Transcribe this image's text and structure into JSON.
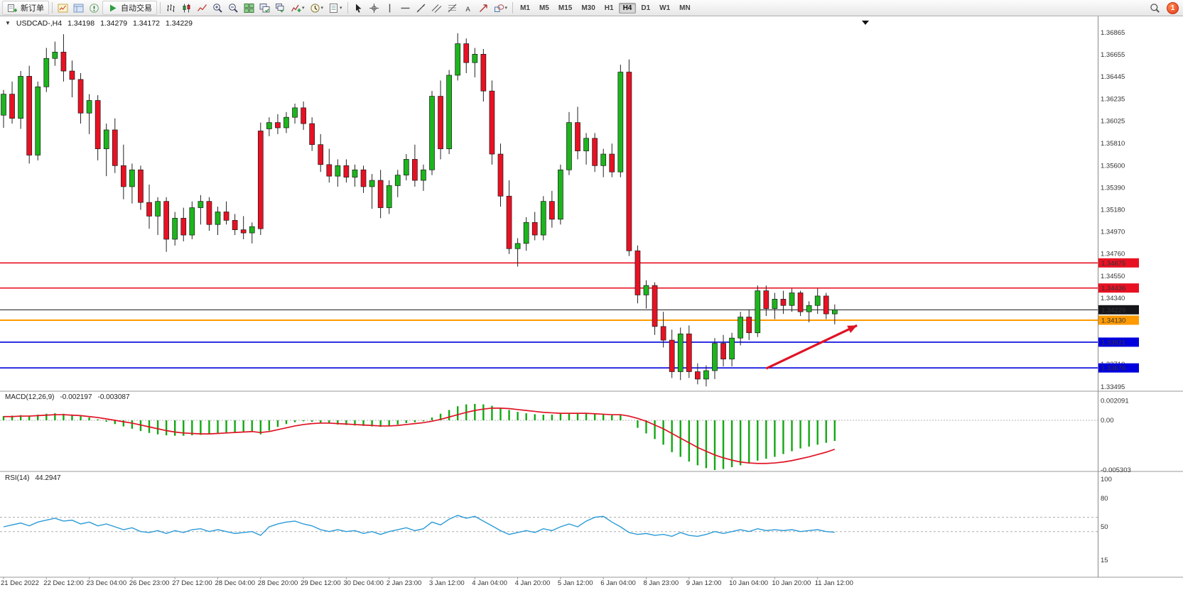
{
  "toolbar": {
    "new_order_label": "新订单",
    "autotrade_label": "自动交易",
    "groups": {
      "left_icons": [
        "charts-icon",
        "profile-icon",
        "alerts-icon"
      ],
      "chart_types": [
        "bar-chart-icon",
        "candlestick-icon",
        "line-chart-icon"
      ],
      "zoom": [
        "zoom-in-icon",
        "zoom-out-icon"
      ],
      "windows": [
        "tile-windows-icon",
        "arrange-windows-icon",
        "cascade-windows-icon"
      ],
      "insert": [
        "indicators-icon",
        "timeframe-clock-icon",
        "template-icon"
      ],
      "draw": [
        "cursor-icon",
        "crosshair-icon",
        "vertical-line-icon",
        "horizontal-line-icon",
        "trendline-icon",
        "channel-icon",
        "fibonacci-icon",
        "text-icon",
        "arrow-draw-icon",
        "shapes-icon"
      ]
    },
    "timeframes": [
      "M1",
      "M5",
      "M15",
      "M30",
      "H1",
      "H4",
      "D1",
      "W1",
      "MN"
    ],
    "active_timeframe": "H4",
    "search_icon": "search-icon",
    "notification_count": "1"
  },
  "chart_header": {
    "collapse_icon": "▼",
    "symbol": "USDCAD-,H4",
    "open": "1.34198",
    "high": "1.34279",
    "low": "1.34172",
    "close": "1.34229"
  },
  "macd_panel": {
    "label": "MACD(12,26,9)",
    "value_main": "-0.002197",
    "value_signal": "-0.003087"
  },
  "rsi_panel": {
    "label": "RSI(14)",
    "value": "44.2947"
  },
  "chart_data": [
    {
      "type": "candlestick",
      "title": "USDCAD-,H4",
      "timeframe": "H4",
      "ohlc_display": {
        "open": 1.34198,
        "high": 1.34279,
        "low": 1.34172,
        "close": 1.34229
      },
      "ylim": [
        1.33495,
        1.36865
      ],
      "y_ticks": [
        "1.36865",
        "1.36655",
        "1.36445",
        "1.36235",
        "1.36025",
        "1.35810",
        "1.35600",
        "1.35390",
        "1.35180",
        "1.34970",
        "1.34760",
        "1.34550",
        "1.34340",
        "1.34130",
        "1.33920",
        "1.33710",
        "1.33495"
      ],
      "x_tick_step": 5,
      "x_tick_labels": [
        "21 Dec 2022",
        "22 Dec 12:00",
        "23 Dec 04:00",
        "26 Dec 23:00",
        "27 Dec 12:00",
        "28 Dec 04:00",
        "28 Dec 20:00",
        "29 Dec 12:00",
        "30 Dec 04:00",
        "2 Jan 23:00",
        "3 Jan 12:00",
        "4 Jan 04:00",
        "4 Jan 20:00",
        "5 Jan 12:00",
        "6 Jan 04:00",
        "8 Jan 23:00",
        "9 Jan 12:00",
        "10 Jan 04:00",
        "10 Jan 20:00",
        "11 Jan 12:00"
      ],
      "up_color": "#1db51d",
      "down_color": "#e81123",
      "wick_color": "#222222",
      "hlines": [
        {
          "value": 1.34675,
          "label": "1.34675",
          "color": "#e81123",
          "width": 1.6
        },
        {
          "value": 1.34436,
          "label": "1.34436",
          "color": "#e81123",
          "width": 1.6
        },
        {
          "value": 1.34229,
          "label": "1.34229",
          "color": "#15151a",
          "width": 1
        },
        {
          "value": 1.3413,
          "label": "1.34130",
          "color": "#ff9a00",
          "width": 2
        },
        {
          "value": 1.33921,
          "label": "1.33921",
          "color": "#0000dd",
          "width": 1.6
        },
        {
          "value": 1.33676,
          "label": "1.33676",
          "color": "#0000dd",
          "width": 1.6
        }
      ],
      "annotations": [
        {
          "type": "arrow",
          "color": "#e01325",
          "start": {
            "index": 89,
            "price": 1.3367
          },
          "end": {
            "index": 99.6,
            "price": 1.3408
          }
        }
      ],
      "candles": [
        [
          1.3608,
          1.3632,
          1.3596,
          1.3628
        ],
        [
          1.3628,
          1.364,
          1.36,
          1.3605
        ],
        [
          1.3605,
          1.365,
          1.3595,
          1.3645
        ],
        [
          1.3645,
          1.3655,
          1.3562,
          1.357
        ],
        [
          1.357,
          1.364,
          1.3565,
          1.3635
        ],
        [
          1.3635,
          1.3672,
          1.363,
          1.3662
        ],
        [
          1.3662,
          1.3678,
          1.3655,
          1.3668
        ],
        [
          1.3668,
          1.3685,
          1.364,
          1.365
        ],
        [
          1.365,
          1.366,
          1.3625,
          1.3642
        ],
        [
          1.3642,
          1.3648,
          1.36,
          1.361
        ],
        [
          1.361,
          1.3628,
          1.359,
          1.3622
        ],
        [
          1.3622,
          1.3627,
          1.3565,
          1.3576
        ],
        [
          1.3576,
          1.36,
          1.355,
          1.3594
        ],
        [
          1.3594,
          1.3605,
          1.3553,
          1.356
        ],
        [
          1.356,
          1.358,
          1.3528,
          1.354
        ],
        [
          1.354,
          1.3562,
          1.3524,
          1.3556
        ],
        [
          1.3556,
          1.356,
          1.3518,
          1.3525
        ],
        [
          1.3525,
          1.3542,
          1.35,
          1.3512
        ],
        [
          1.3512,
          1.353,
          1.3494,
          1.3526
        ],
        [
          1.3526,
          1.353,
          1.3478,
          1.349
        ],
        [
          1.349,
          1.3516,
          1.3484,
          1.351
        ],
        [
          1.351,
          1.352,
          1.3488,
          1.3494
        ],
        [
          1.3494,
          1.3526,
          1.349,
          1.352
        ],
        [
          1.352,
          1.3532,
          1.3504,
          1.3526
        ],
        [
          1.3526,
          1.353,
          1.3498,
          1.3504
        ],
        [
          1.3504,
          1.3521,
          1.3494,
          1.3516
        ],
        [
          1.3516,
          1.3526,
          1.3504,
          1.3508
        ],
        [
          1.3508,
          1.3514,
          1.3494,
          1.3499
        ],
        [
          1.3499,
          1.3512,
          1.349,
          1.3496
        ],
        [
          1.3496,
          1.3506,
          1.3486,
          1.3502
        ],
        [
          1.3593,
          1.3601,
          1.3494,
          1.35
        ],
        [
          1.3595,
          1.3606,
          1.3588,
          1.3601
        ],
        [
          1.3601,
          1.3609,
          1.359,
          1.3596
        ],
        [
          1.3596,
          1.3611,
          1.3591,
          1.3606
        ],
        [
          1.3606,
          1.3619,
          1.36,
          1.3615
        ],
        [
          1.3615,
          1.3621,
          1.3594,
          1.36
        ],
        [
          1.36,
          1.3606,
          1.3574,
          1.358
        ],
        [
          1.358,
          1.359,
          1.3554,
          1.3561
        ],
        [
          1.3561,
          1.3576,
          1.3544,
          1.355
        ],
        [
          1.355,
          1.3566,
          1.354,
          1.356
        ],
        [
          1.356,
          1.3566,
          1.3544,
          1.3549
        ],
        [
          1.3549,
          1.3561,
          1.354,
          1.3556
        ],
        [
          1.3556,
          1.356,
          1.3534,
          1.354
        ],
        [
          1.354,
          1.3552,
          1.3519,
          1.3546
        ],
        [
          1.3546,
          1.3556,
          1.351,
          1.352
        ],
        [
          1.352,
          1.3546,
          1.3514,
          1.3541
        ],
        [
          1.3541,
          1.3556,
          1.353,
          1.3551
        ],
        [
          1.3551,
          1.3571,
          1.3546,
          1.3566
        ],
        [
          1.3566,
          1.358,
          1.354,
          1.3546
        ],
        [
          1.3546,
          1.3561,
          1.3536,
          1.3556
        ],
        [
          1.3556,
          1.3631,
          1.3551,
          1.3626
        ],
        [
          1.3626,
          1.3641,
          1.3566,
          1.3576
        ],
        [
          1.3576,
          1.3651,
          1.3571,
          1.3646
        ],
        [
          1.3646,
          1.3686,
          1.3641,
          1.3676
        ],
        [
          1.3676,
          1.3681,
          1.3648,
          1.3658
        ],
        [
          1.3658,
          1.3672,
          1.3644,
          1.3666
        ],
        [
          1.3666,
          1.3671,
          1.3621,
          1.3631
        ],
        [
          1.3631,
          1.3641,
          1.3561,
          1.3571
        ],
        [
          1.3571,
          1.3581,
          1.3521,
          1.3531
        ],
        [
          1.3531,
          1.3546,
          1.3476,
          1.3481
        ],
        [
          1.3481,
          1.3491,
          1.3464,
          1.3486
        ],
        [
          1.3486,
          1.3511,
          1.3479,
          1.3506
        ],
        [
          1.3506,
          1.3516,
          1.3489,
          1.3494
        ],
        [
          1.3494,
          1.3531,
          1.3489,
          1.3526
        ],
        [
          1.3526,
          1.3536,
          1.3501,
          1.3509
        ],
        [
          1.3509,
          1.3561,
          1.3504,
          1.3556
        ],
        [
          1.3556,
          1.3611,
          1.3551,
          1.3601
        ],
        [
          1.3601,
          1.3616,
          1.3566,
          1.3574
        ],
        [
          1.3574,
          1.3591,
          1.3561,
          1.3586
        ],
        [
          1.3586,
          1.3591,
          1.3554,
          1.356
        ],
        [
          1.356,
          1.3576,
          1.3549,
          1.3571
        ],
        [
          1.3571,
          1.3581,
          1.3549,
          1.3554
        ],
        [
          1.3554,
          1.3656,
          1.3549,
          1.3649
        ],
        [
          1.3649,
          1.3661,
          1.3474,
          1.3479
        ],
        [
          1.3479,
          1.3484,
          1.3429,
          1.3437
        ],
        [
          1.3437,
          1.3451,
          1.3424,
          1.3446
        ],
        [
          1.3446,
          1.3449,
          1.3399,
          1.3407
        ],
        [
          1.3407,
          1.3421,
          1.3387,
          1.3394
        ],
        [
          1.3394,
          1.3404,
          1.3358,
          1.3364
        ],
        [
          1.3364,
          1.3406,
          1.3356,
          1.34
        ],
        [
          1.34,
          1.3408,
          1.3358,
          1.3364
        ],
        [
          1.3364,
          1.3372,
          1.3352,
          1.3357
        ],
        [
          1.3357,
          1.337,
          1.335,
          1.3365
        ],
        [
          1.3365,
          1.3396,
          1.3357,
          1.3391
        ],
        [
          1.3391,
          1.3399,
          1.3369,
          1.3376
        ],
        [
          1.3376,
          1.3401,
          1.3369,
          1.3396
        ],
        [
          1.3396,
          1.3421,
          1.3389,
          1.3416
        ],
        [
          1.3416,
          1.3423,
          1.3394,
          1.3401
        ],
        [
          1.3401,
          1.3446,
          1.3397,
          1.3441
        ],
        [
          1.3441,
          1.3446,
          1.3417,
          1.3424
        ],
        [
          1.3424,
          1.3439,
          1.3414,
          1.3433
        ],
        [
          1.3433,
          1.3441,
          1.3419,
          1.3427
        ],
        [
          1.3427,
          1.3443,
          1.3421,
          1.3439
        ],
        [
          1.3439,
          1.3441,
          1.3417,
          1.3421
        ],
        [
          1.3421,
          1.3431,
          1.3411,
          1.3427
        ],
        [
          1.3427,
          1.3443,
          1.3419,
          1.3436
        ],
        [
          1.3436,
          1.3439,
          1.3414,
          1.3419
        ],
        [
          1.3419,
          1.3428,
          1.3409,
          1.34229
        ]
      ]
    },
    {
      "type": "bar",
      "name": "MACD(12,26,9)",
      "current": {
        "macd": -0.002197,
        "signal": -0.003087
      },
      "y_ticks": [
        "0.002091",
        "0.00",
        "-0.005303"
      ],
      "bar_color": "#12a812",
      "line_color": "#e01325",
      "values": [
        0.00045,
        0.0005,
        0.00055,
        0.0005,
        0.0006,
        0.0007,
        0.00075,
        0.0007,
        0.0006,
        0.00045,
        0.0003,
        0.0001,
        -0.00015,
        -0.0004,
        -0.00065,
        -0.0009,
        -0.00115,
        -0.00135,
        -0.0015,
        -0.0016,
        -0.00165,
        -0.00165,
        -0.0016,
        -0.00155,
        -0.00145,
        -0.00135,
        -0.0013,
        -0.00125,
        -0.0012,
        -0.00125,
        -0.0015,
        -0.0011,
        -0.0007,
        -0.0004,
        -0.0002,
        -0.0001,
        -0.00015,
        -0.00025,
        -0.00035,
        -0.00045,
        -0.0005,
        -0.00055,
        -0.0006,
        -0.00065,
        -0.0007,
        -0.0006,
        -0.00045,
        -0.0003,
        -0.0002,
        -0.0001,
        0.0003,
        0.0007,
        0.0011,
        0.0015,
        0.0017,
        0.00175,
        0.0017,
        0.00155,
        0.00135,
        0.0011,
        0.0009,
        0.00075,
        0.00065,
        0.0006,
        0.0006,
        0.0007,
        0.00075,
        0.0008,
        0.0008,
        0.0007,
        0.0006,
        0.00055,
        0.0006,
        0.0,
        -0.0008,
        -0.0014,
        -0.002,
        -0.0026,
        -0.0034,
        -0.0039,
        -0.0044,
        -0.0048,
        -0.0051,
        -0.0053,
        -0.0052,
        -0.005,
        -0.0048,
        -0.0046,
        -0.0043,
        -0.0041,
        -0.0039,
        -0.0036,
        -0.0033,
        -0.003,
        -0.0028,
        -0.0026,
        -0.0024,
        -0.002197
      ],
      "signal_line": [
        0.0004,
        0.0004,
        0.00045,
        0.00045,
        0.0005,
        0.00055,
        0.0006,
        0.0006,
        0.00055,
        0.0005,
        0.0004,
        0.0003,
        0.00015,
        0.0,
        -0.00015,
        -0.0003,
        -0.0005,
        -0.0007,
        -0.0009,
        -0.0011,
        -0.00125,
        -0.00135,
        -0.0014,
        -0.00145,
        -0.00145,
        -0.0014,
        -0.00135,
        -0.0013,
        -0.00125,
        -0.0012,
        -0.0013,
        -0.0012,
        -0.001,
        -0.0008,
        -0.0006,
        -0.00045,
        -0.00035,
        -0.0003,
        -0.0003,
        -0.00035,
        -0.0004,
        -0.00045,
        -0.0005,
        -0.00055,
        -0.0006,
        -0.0006,
        -0.00055,
        -0.00045,
        -0.00035,
        -0.00025,
        -0.0001,
        0.0001,
        0.00035,
        0.0006,
        0.00085,
        0.00105,
        0.0012,
        0.0013,
        0.0013,
        0.00125,
        0.00115,
        0.00105,
        0.00095,
        0.00085,
        0.0008,
        0.00075,
        0.00075,
        0.00075,
        0.00075,
        0.0007,
        0.00065,
        0.0006,
        0.0006,
        0.00045,
        0.0002,
        -0.0001,
        -0.0005,
        -0.0009,
        -0.0014,
        -0.0019,
        -0.0024,
        -0.0029,
        -0.0033,
        -0.0037,
        -0.004,
        -0.00425,
        -0.00445,
        -0.00455,
        -0.0046,
        -0.0046,
        -0.00455,
        -0.00445,
        -0.0043,
        -0.0041,
        -0.0039,
        -0.00365,
        -0.0034,
        -0.003087
      ]
    },
    {
      "type": "line",
      "name": "RSI(14)",
      "current": 44.2947,
      "ylim": [
        0,
        100
      ],
      "y_ticks": [
        "100",
        "80",
        "50",
        "15"
      ],
      "levels": [
        60,
        45
      ],
      "color": "#2b9bd7",
      "values": [
        50,
        52,
        54,
        51,
        55,
        57,
        59,
        56,
        57,
        53,
        55,
        51,
        53,
        50,
        47,
        49,
        45,
        44,
        46,
        43,
        46,
        44,
        47,
        48,
        45,
        47,
        45,
        43,
        44,
        45,
        41,
        50,
        53,
        55,
        56,
        53,
        51,
        47,
        45,
        47,
        45,
        46,
        43,
        45,
        42,
        45,
        47,
        49,
        46,
        48,
        55,
        52,
        58,
        62,
        59,
        61,
        56,
        51,
        46,
        42,
        44,
        46,
        44,
        48,
        46,
        50,
        53,
        50,
        56,
        60,
        61,
        55,
        50,
        44,
        42,
        43,
        41,
        42,
        40,
        44,
        41,
        40,
        42,
        45,
        43,
        45,
        47,
        45,
        48,
        46,
        47,
        46,
        47,
        45,
        46,
        47,
        45,
        44.29
      ]
    }
  ]
}
